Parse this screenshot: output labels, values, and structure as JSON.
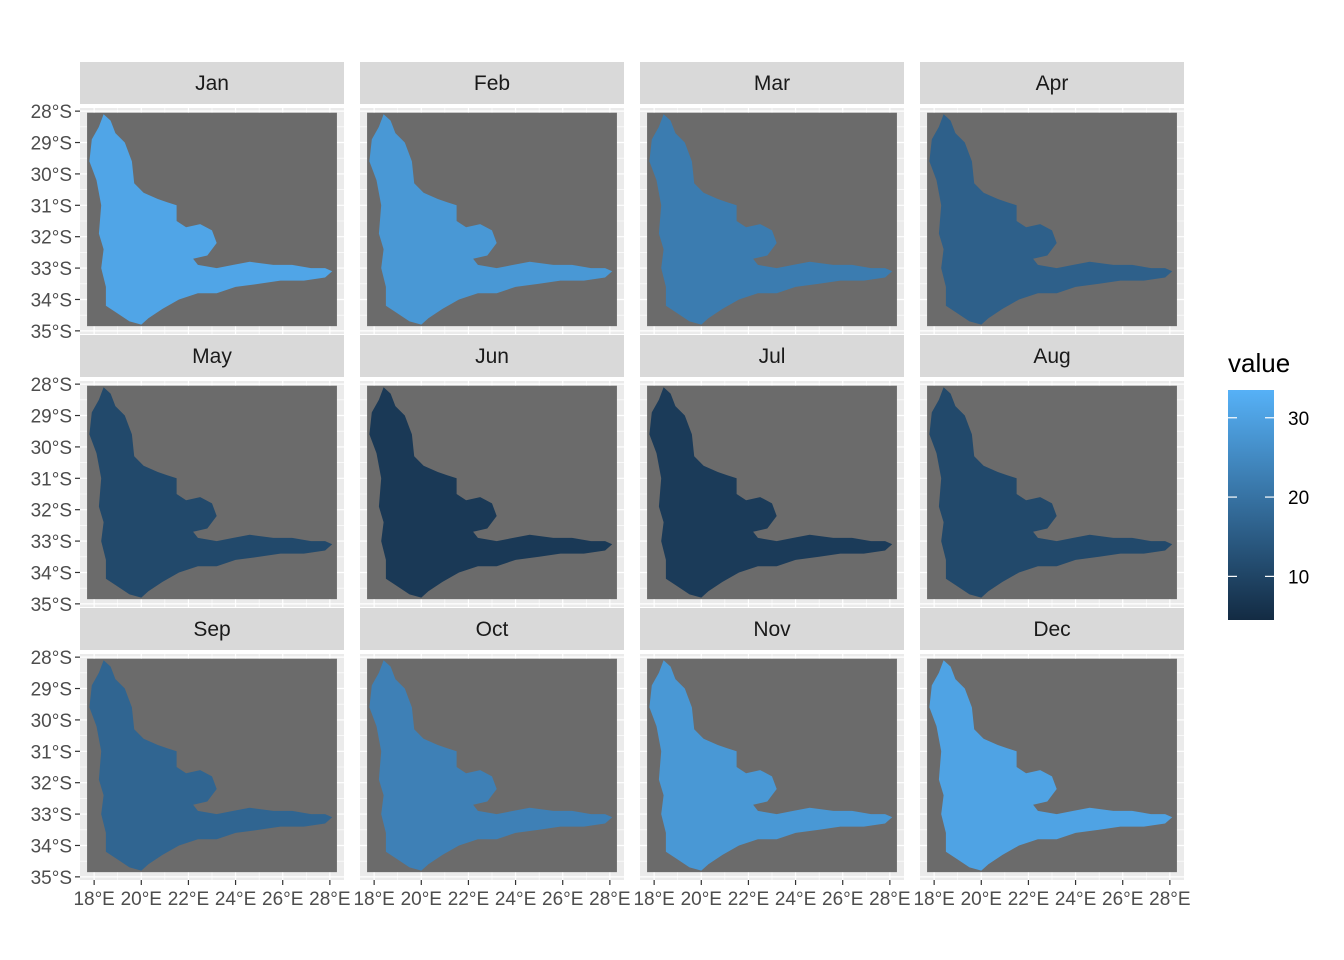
{
  "chart_data": {
    "type": "heatmap",
    "title": "",
    "xlabel": "",
    "ylabel": "",
    "panels": [
      {
        "label": "Jan",
        "value": 31.0
      },
      {
        "label": "Feb",
        "value": 28.0
      },
      {
        "label": "Mar",
        "value": 22.0
      },
      {
        "label": "Apr",
        "value": 16.0
      },
      {
        "label": "May",
        "value": 11.0
      },
      {
        "label": "Jun",
        "value": 7.5
      },
      {
        "label": "Jul",
        "value": 8.0
      },
      {
        "label": "Aug",
        "value": 11.0
      },
      {
        "label": "Sep",
        "value": 17.0
      },
      {
        "label": "Oct",
        "value": 23.0
      },
      {
        "label": "Nov",
        "value": 28.0
      },
      {
        "label": "Dec",
        "value": 30.5
      }
    ],
    "x_ticks": [
      "18°E",
      "20°E",
      "22°E",
      "24°E",
      "26°E",
      "28°E"
    ],
    "x_values": [
      18,
      20,
      22,
      24,
      26,
      28
    ],
    "xlim": [
      17.4,
      28.6
    ],
    "y_ticks": [
      "28°S",
      "29°S",
      "30°S",
      "31°S",
      "32°S",
      "33°S",
      "34°S",
      "35°S"
    ],
    "y_values": [
      -28,
      -29,
      -30,
      -31,
      -32,
      -33,
      -34,
      -35
    ],
    "ylim": [
      -35.1,
      -27.9
    ],
    "layout": {
      "columns": 4,
      "rows": 3
    },
    "grid": true,
    "panel_background": "#ebebeb",
    "na_color": "#6b6b6b",
    "strip_color": "#d9d9d9",
    "legend": {
      "title": "value",
      "position": "right",
      "ticks": [
        10,
        20,
        30
      ],
      "range": [
        4.5,
        33.5
      ],
      "low_color": "#132b43",
      "high_color": "#56b1f7"
    },
    "region_outline": [
      [
        18.4,
        -28.1
      ],
      [
        18.7,
        -28.3
      ],
      [
        18.9,
        -28.7
      ],
      [
        19.3,
        -29.0
      ],
      [
        19.6,
        -29.6
      ],
      [
        19.7,
        -30.3
      ],
      [
        20.1,
        -30.6
      ],
      [
        20.4,
        -30.7
      ],
      [
        20.7,
        -30.8
      ],
      [
        21.1,
        -30.9
      ],
      [
        21.5,
        -31.0
      ],
      [
        21.5,
        -31.5
      ],
      [
        21.9,
        -31.7
      ],
      [
        22.5,
        -31.6
      ],
      [
        23.0,
        -31.8
      ],
      [
        23.2,
        -32.2
      ],
      [
        22.8,
        -32.6
      ],
      [
        22.2,
        -32.7
      ],
      [
        22.4,
        -32.9
      ],
      [
        23.2,
        -33.0
      ],
      [
        23.9,
        -32.9
      ],
      [
        24.6,
        -32.8
      ],
      [
        25.6,
        -32.9
      ],
      [
        26.4,
        -32.9
      ],
      [
        27.2,
        -33.0
      ],
      [
        27.8,
        -33.0
      ],
      [
        28.1,
        -33.1
      ],
      [
        27.8,
        -33.3
      ],
      [
        26.9,
        -33.4
      ],
      [
        25.9,
        -33.4
      ],
      [
        25.0,
        -33.5
      ],
      [
        24.0,
        -33.6
      ],
      [
        23.2,
        -33.8
      ],
      [
        22.4,
        -33.8
      ],
      [
        21.6,
        -34.0
      ],
      [
        20.9,
        -34.3
      ],
      [
        20.3,
        -34.6
      ],
      [
        20.0,
        -34.8
      ],
      [
        19.5,
        -34.7
      ],
      [
        18.9,
        -34.4
      ],
      [
        18.5,
        -34.2
      ],
      [
        18.5,
        -33.6
      ],
      [
        18.3,
        -33.0
      ],
      [
        18.4,
        -32.4
      ],
      [
        18.2,
        -31.9
      ],
      [
        18.3,
        -31.0
      ],
      [
        18.1,
        -30.2
      ],
      [
        17.8,
        -29.6
      ],
      [
        17.9,
        -28.9
      ],
      [
        18.2,
        -28.5
      ]
    ]
  }
}
